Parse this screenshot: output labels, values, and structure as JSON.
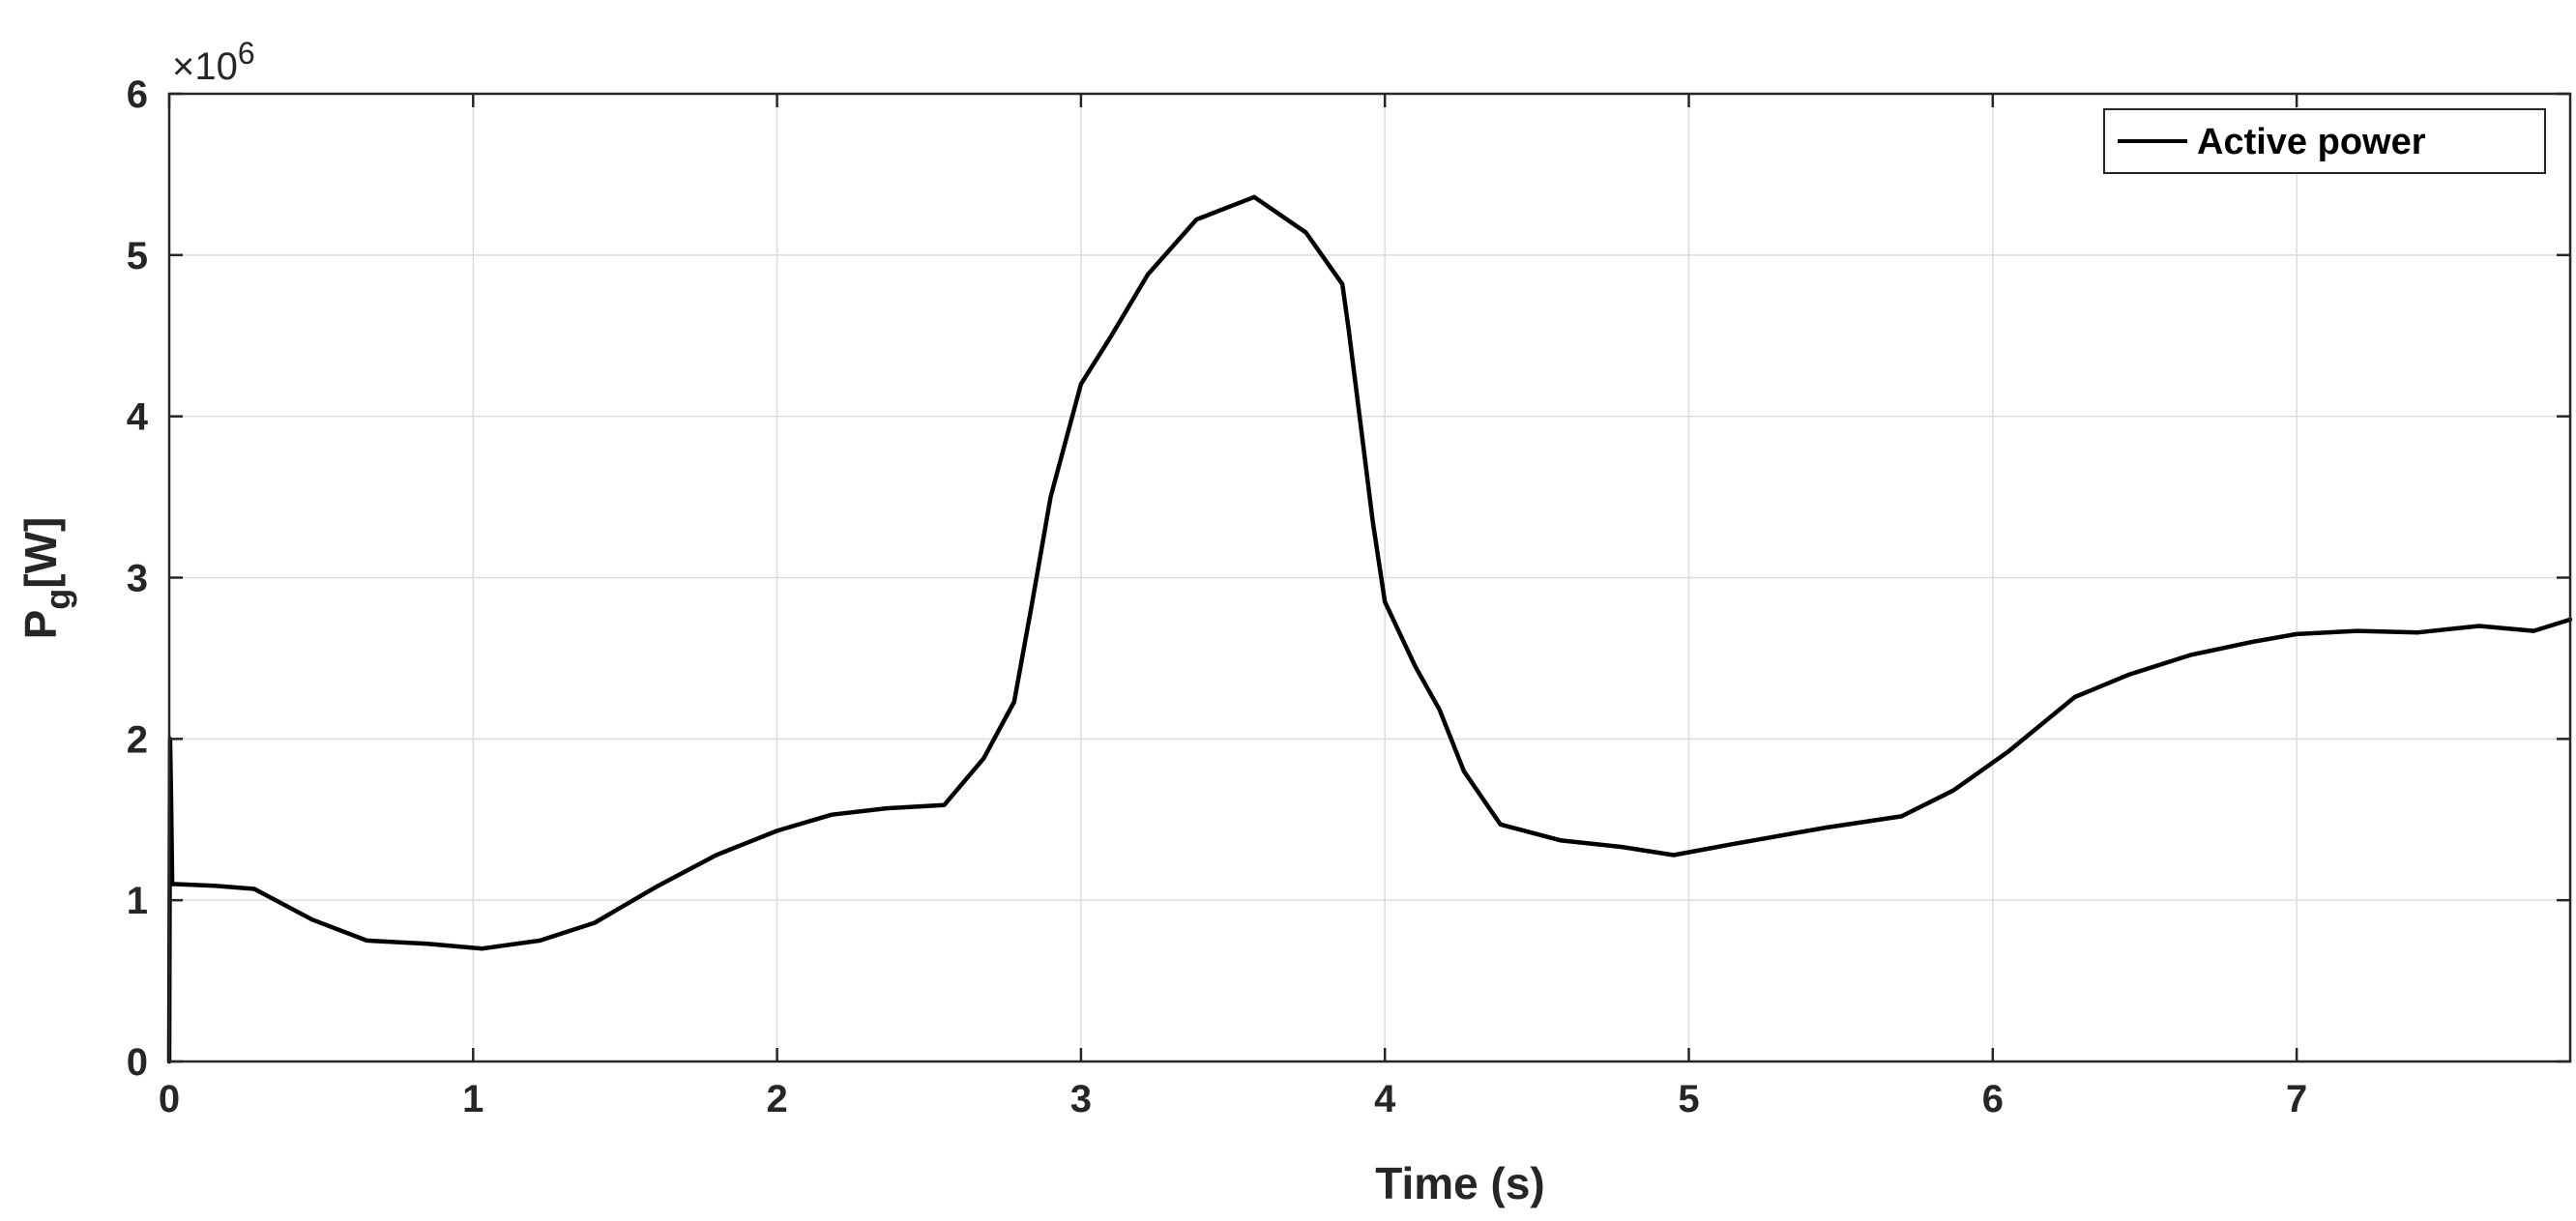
{
  "chart_data": {
    "type": "line",
    "xlabel": "Time (s)",
    "ylabel_main": "P",
    "ylabel_sub": "g",
    "ylabel_unit": "[W]",
    "y_exponent_prefix": "×10",
    "y_exponent_power": "6",
    "xlim": [
      0,
      7.9
    ],
    "ylim": [
      0,
      6
    ],
    "x_ticks": [
      0,
      1,
      2,
      3,
      4,
      5,
      6,
      7
    ],
    "x_tick_labels": [
      "0",
      "1",
      "2",
      "3",
      "4",
      "5",
      "6",
      "7"
    ],
    "y_ticks": [
      0,
      1,
      2,
      3,
      4,
      5,
      6
    ],
    "y_tick_labels": [
      "0",
      "1",
      "2",
      "3",
      "4",
      "5",
      "6"
    ],
    "grid": true,
    "legend_position": "top-right",
    "colors": {
      "line": "#000000",
      "grid": "#dcdcdc",
      "axis": "#262626"
    },
    "series": [
      {
        "name": "Active power",
        "x": [
          0,
          0.003,
          0.006,
          0.01,
          0.02,
          0.15,
          0.28,
          0.47,
          0.65,
          0.85,
          1.03,
          1.22,
          1.4,
          1.6,
          1.8,
          2.0,
          2.18,
          2.36,
          2.55,
          2.68,
          2.78,
          2.84,
          2.9,
          2.95,
          3.0,
          3.1,
          3.22,
          3.38,
          3.57,
          3.74,
          3.86,
          3.88,
          3.92,
          3.96,
          4.0,
          4.1,
          4.18,
          4.26,
          4.38,
          4.58,
          4.78,
          4.95,
          5.15,
          5.45,
          5.7,
          5.87,
          6.05,
          6.27,
          6.45,
          6.65,
          6.85,
          7.0,
          7.2,
          7.4,
          7.6,
          7.78,
          7.9
        ],
        "y": [
          0,
          2.0,
          1.65,
          1.1,
          1.1,
          1.09,
          1.07,
          0.88,
          0.75,
          0.73,
          0.7,
          0.75,
          0.86,
          1.08,
          1.28,
          1.43,
          1.53,
          1.57,
          1.59,
          1.88,
          2.23,
          2.85,
          3.5,
          3.85,
          4.2,
          4.5,
          4.88,
          5.22,
          5.36,
          5.14,
          4.82,
          4.55,
          3.95,
          3.35,
          2.85,
          2.45,
          2.18,
          1.8,
          1.47,
          1.37,
          1.33,
          1.28,
          1.35,
          1.45,
          1.52,
          1.68,
          1.92,
          2.26,
          2.4,
          2.52,
          2.6,
          2.65,
          2.67,
          2.66,
          2.7,
          2.67,
          2.74
        ]
      }
    ]
  }
}
